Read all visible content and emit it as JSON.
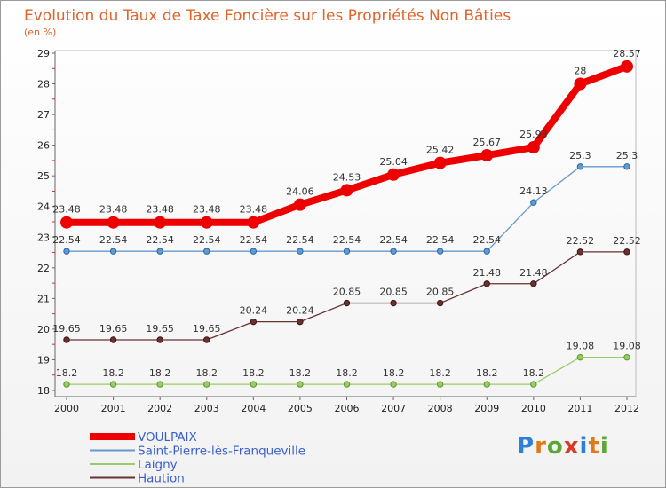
{
  "chart_data": {
    "type": "line",
    "title": "Evolution du Taux de Taxe Foncière sur les Propriétés Non Bâties",
    "unit_label": "(en %)",
    "xlabel": "",
    "ylabel": "",
    "x": [
      "2000",
      "2001",
      "2002",
      "2003",
      "2004",
      "2005",
      "2006",
      "2007",
      "2008",
      "2009",
      "2010",
      "2011",
      "2012"
    ],
    "ylim": [
      18,
      29
    ],
    "yticks": [
      "18",
      "19",
      "20",
      "21",
      "22",
      "23",
      "24",
      "25",
      "26",
      "27",
      "28",
      "29"
    ],
    "grid": false,
    "legend_position": "bottom-left",
    "series": [
      {
        "name": "VOULPAIX",
        "color": "#ee0000",
        "values": [
          23.48,
          23.48,
          23.48,
          23.48,
          23.48,
          24.06,
          24.53,
          25.04,
          25.42,
          25.67,
          25.93,
          28,
          28.57
        ],
        "labels": [
          "23.48",
          "23.48",
          "23.48",
          "23.48",
          "23.48",
          "24.06",
          "24.53",
          "25.04",
          "25.42",
          "25.67",
          "25.93",
          "28",
          "28.57"
        ]
      },
      {
        "name": "Saint-Pierre-lès-Franqueville",
        "color": "#6699cc",
        "values": [
          22.54,
          22.54,
          22.54,
          22.54,
          22.54,
          22.54,
          22.54,
          22.54,
          22.54,
          22.54,
          24.13,
          25.3,
          25.3
        ],
        "labels": [
          "22.54",
          "22.54",
          "22.54",
          "22.54",
          "22.54",
          "22.54",
          "22.54",
          "22.54",
          "22.54",
          "22.54",
          "24.13",
          "25.3",
          "25.3"
        ]
      },
      {
        "name": "Laigny",
        "color": "#99cc66",
        "values": [
          18.2,
          18.2,
          18.2,
          18.2,
          18.2,
          18.2,
          18.2,
          18.2,
          18.2,
          18.2,
          18.2,
          19.08,
          19.08
        ],
        "labels": [
          "18.2",
          "18.2",
          "18.2",
          "18.2",
          "18.2",
          "18.2",
          "18.2",
          "18.2",
          "18.2",
          "18.2",
          "18.2",
          "19.08",
          "19.08"
        ]
      },
      {
        "name": "Haution",
        "color": "#663333",
        "values": [
          19.65,
          19.65,
          19.65,
          19.65,
          20.24,
          20.24,
          20.85,
          20.85,
          20.85,
          21.48,
          21.48,
          22.52,
          22.52
        ],
        "labels": [
          "19.65",
          "19.65",
          "19.65",
          "19.65",
          "20.24",
          "20.24",
          "20.85",
          "20.85",
          "20.85",
          "21.48",
          "21.48",
          "22.52",
          "22.52"
        ]
      }
    ]
  },
  "logo": {
    "letters": [
      "P",
      "r",
      "o",
      "x",
      "i",
      "t",
      "i"
    ],
    "colors": [
      "#2e7fd6",
      "#e07b1a",
      "#5aa832",
      "#d83a2a",
      "#2e7fd6",
      "#e07b1a",
      "#5aa832"
    ]
  }
}
